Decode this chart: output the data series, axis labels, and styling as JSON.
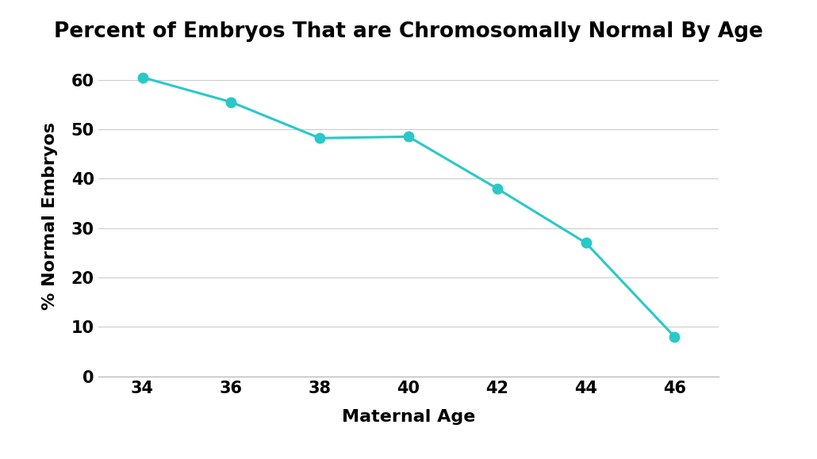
{
  "title": "Percent of Embryos That are Chromosomally Normal By Age",
  "xlabel": "Maternal Age",
  "ylabel": "% Normal Embryos",
  "x": [
    34,
    36,
    38,
    40,
    42,
    44,
    46
  ],
  "y": [
    60.5,
    55.5,
    48.2,
    48.5,
    38.0,
    27.0,
    8.0
  ],
  "line_color": "#2ac8c8",
  "marker_color": "#2ac8c8",
  "background_color": "#ffffff",
  "ylim": [
    0,
    65
  ],
  "xlim": [
    33,
    47
  ],
  "yticks": [
    0,
    10,
    20,
    30,
    40,
    50,
    60
  ],
  "xticks": [
    34,
    36,
    38,
    40,
    42,
    44,
    46
  ],
  "title_fontsize": 19,
  "label_fontsize": 16,
  "tick_fontsize": 15,
  "line_width": 2.2,
  "marker_size": 9
}
